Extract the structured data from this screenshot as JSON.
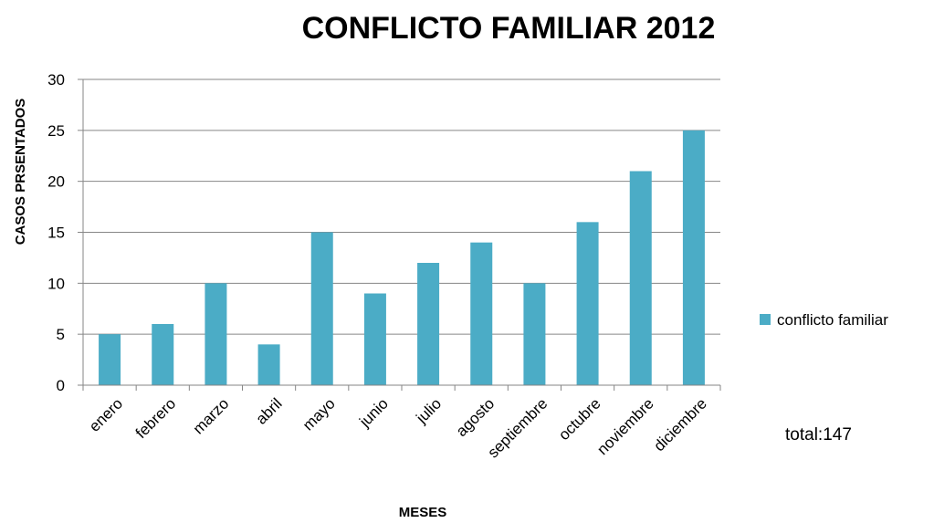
{
  "chart_data": {
    "type": "bar",
    "title": "CONFLICTO FAMILIAR 2012",
    "xlabel": "MESES",
    "ylabel": "CASOS PRSENTADOS",
    "categories": [
      "enero",
      "febrero",
      "marzo",
      "abril",
      "mayo",
      "junio",
      "julio",
      "agosto",
      "septiembre",
      "octubre",
      "noviembre",
      "diciembre"
    ],
    "series": [
      {
        "name": "conflicto familiar",
        "values": [
          5,
          6,
          10,
          4,
          15,
          9,
          12,
          14,
          10,
          16,
          21,
          25
        ]
      }
    ],
    "ylim": [
      0,
      30
    ],
    "yticks": [
      0,
      5,
      10,
      15,
      20,
      25,
      30
    ],
    "grid": true,
    "legend_position": "right",
    "bar_color": "#4BACC6",
    "annotation": "total:147"
  }
}
